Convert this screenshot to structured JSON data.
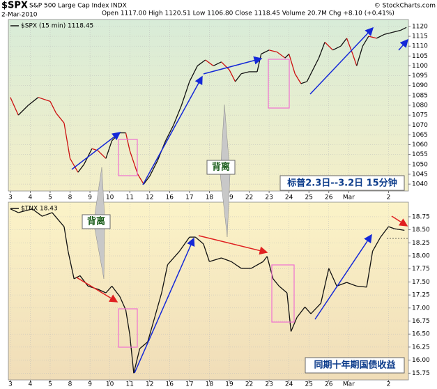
{
  "header": {
    "symbol": "$SPX",
    "name": "S&P 500 Large Cap Index INDX",
    "date": "2-Mar-2010",
    "quote": "Open 1117.00  High 1120.51  Low 1106.80  Close 1118.45  Volume 20.7M  Chg +8.10 (+0.41%)",
    "source": "© StockCharts.com"
  },
  "chart_data": [
    {
      "type": "line",
      "annotations": [
        "背离",
        "标普2.3日--3.2日  15分钟"
      ],
      "x": [
        0,
        0.4,
        0.9,
        1.4,
        2.0,
        2.3,
        2.7,
        3.0,
        3.4,
        3.7,
        4.1,
        4.4,
        4.8,
        5.1,
        5.5,
        5.8,
        6.0,
        6.4,
        6.7,
        7.0,
        7.4,
        7.8,
        8.2,
        8.6,
        9.0,
        9.4,
        9.8,
        10.2,
        10.6,
        11.0,
        11.3,
        11.6,
        12.0,
        12.4,
        12.6,
        13.0,
        13.4,
        13.8,
        14.0,
        14.3,
        14.6,
        14.9,
        15.2,
        15.5,
        15.8,
        16.2,
        16.6,
        16.9,
        17.2,
        17.4,
        17.7,
        18.0,
        18.4,
        18.8,
        19.2,
        19.6,
        19.9
      ],
      "series": [
        {
          "name": "$SPX (15 min) 1118.45",
          "color": "#111111",
          "down_color": "#cc1111",
          "values": [
            1084,
            1075,
            1080,
            1084,
            1082,
            1076,
            1071,
            1053,
            1046,
            1050,
            1058,
            1057,
            1053,
            1062,
            1066,
            1066,
            1057,
            1045,
            1040,
            1044,
            1052,
            1062,
            1070,
            1080,
            1092,
            1100,
            1103,
            1100,
            1102,
            1098,
            1092,
            1096,
            1097,
            1097,
            1106,
            1108,
            1107,
            1104,
            1106,
            1096,
            1091,
            1092,
            1098,
            1104,
            1112,
            1108,
            1110,
            1114,
            1106,
            1100,
            1110,
            1115,
            1114,
            1116,
            1117,
            1118,
            1119.5
          ]
        }
      ],
      "xlim": [
        -0.1,
        20
      ],
      "xticks": [
        {
          "value": 0,
          "label": "3"
        },
        {
          "value": 1,
          "label": "4"
        },
        {
          "value": 2,
          "label": "5"
        },
        {
          "value": 3,
          "label": "8"
        },
        {
          "value": 4,
          "label": "9"
        },
        {
          "value": 5,
          "label": "10"
        },
        {
          "value": 6,
          "label": "11"
        },
        {
          "value": 7,
          "label": "12"
        },
        {
          "value": 8,
          "label": "16"
        },
        {
          "value": 9,
          "label": "17"
        },
        {
          "value": 10,
          "label": "18"
        },
        {
          "value": 11,
          "label": "19"
        },
        {
          "value": 12,
          "label": "22"
        },
        {
          "value": 13,
          "label": "23"
        },
        {
          "value": 14,
          "label": "24"
        },
        {
          "value": 15,
          "label": "25"
        },
        {
          "value": 16,
          "label": "26"
        },
        {
          "value": 17,
          "label": "Mar"
        },
        {
          "value": 19,
          "label": "2"
        }
      ],
      "ylim": [
        1036.5,
        1123.5
      ],
      "yticks": [
        1040,
        1045,
        1050,
        1055,
        1060,
        1065,
        1070,
        1075,
        1080,
        1085,
        1090,
        1095,
        1100,
        1105,
        1110,
        1115,
        1120
      ],
      "grid": true
    },
    {
      "type": "line",
      "annotations": [
        "背离",
        "同期十年期国债收益"
      ],
      "x": [
        0,
        0.4,
        1.1,
        1.6,
        2.1,
        2.7,
        2.9,
        3.2,
        3.5,
        3.9,
        4.4,
        4.8,
        5.1,
        5.5,
        5.8,
        6.0,
        6.2,
        6.5,
        6.9,
        7.2,
        7.6,
        7.9,
        8.5,
        9.0,
        9.3,
        9.7,
        10.0,
        10.6,
        11.1,
        11.6,
        12.1,
        12.7,
        12.9,
        13.2,
        13.5,
        13.9,
        14.1,
        14.4,
        14.8,
        15.1,
        15.6,
        16.0,
        16.4,
        16.9,
        17.4,
        17.9,
        18.2,
        18.6,
        19.0,
        19.3,
        19.8
      ],
      "series": [
        {
          "name": "$TNX 18.43",
          "color": "#111111",
          "down_color": "#111111",
          "values": [
            18.9,
            18.83,
            18.9,
            18.76,
            18.83,
            18.56,
            18.09,
            17.56,
            17.62,
            17.42,
            17.36,
            17.29,
            17.42,
            17.22,
            16.96,
            16.49,
            15.75,
            16.22,
            16.35,
            16.75,
            17.29,
            17.83,
            18.09,
            18.36,
            18.36,
            18.23,
            17.89,
            17.96,
            17.89,
            17.76,
            17.76,
            17.89,
            17.99,
            17.56,
            17.42,
            17.29,
            16.55,
            16.82,
            17.02,
            16.89,
            17.09,
            17.76,
            17.42,
            17.49,
            17.42,
            17.4,
            18.09,
            18.36,
            18.56,
            18.52,
            18.49
          ]
        }
      ],
      "xlim": [
        -0.1,
        20
      ],
      "xticks": [
        {
          "value": 0,
          "label": "3"
        },
        {
          "value": 1,
          "label": "4"
        },
        {
          "value": 2,
          "label": "5"
        },
        {
          "value": 3,
          "label": "8"
        },
        {
          "value": 4,
          "label": "9"
        },
        {
          "value": 5,
          "label": "10"
        },
        {
          "value": 6,
          "label": "11"
        },
        {
          "value": 7,
          "label": "12"
        },
        {
          "value": 8,
          "label": "16"
        },
        {
          "value": 9,
          "label": "17"
        },
        {
          "value": 10,
          "label": "18"
        },
        {
          "value": 11,
          "label": "19"
        },
        {
          "value": 12,
          "label": "22"
        },
        {
          "value": 13,
          "label": "23"
        },
        {
          "value": 14,
          "label": "24"
        },
        {
          "value": 15,
          "label": "25"
        },
        {
          "value": 16,
          "label": "26"
        },
        {
          "value": 17,
          "label": "Mar"
        },
        {
          "value": 19,
          "label": "2"
        }
      ],
      "ylim": [
        15.62,
        19.03
      ],
      "yticks": [
        {
          "value": 15.75,
          "label": "15.75"
        },
        {
          "value": 16,
          "label": "16.00"
        },
        {
          "value": 16.25,
          "label": "16.25"
        },
        {
          "value": 16.5,
          "label": "16.50"
        },
        {
          "value": 16.75,
          "label": "16.75"
        },
        {
          "value": 17,
          "label": "17.00"
        },
        {
          "value": 17.25,
          "label": "17.25"
        },
        {
          "value": 17.5,
          "label": "17.50"
        },
        {
          "value": 17.75,
          "label": "17.75"
        },
        {
          "value": 18,
          "label": "18.00"
        },
        {
          "value": 18.25,
          "label": "18.25"
        },
        {
          "value": 18.5,
          "label": "18.50"
        },
        {
          "value": 18.75,
          "label": "18.75"
        }
      ],
      "grid": true
    }
  ]
}
